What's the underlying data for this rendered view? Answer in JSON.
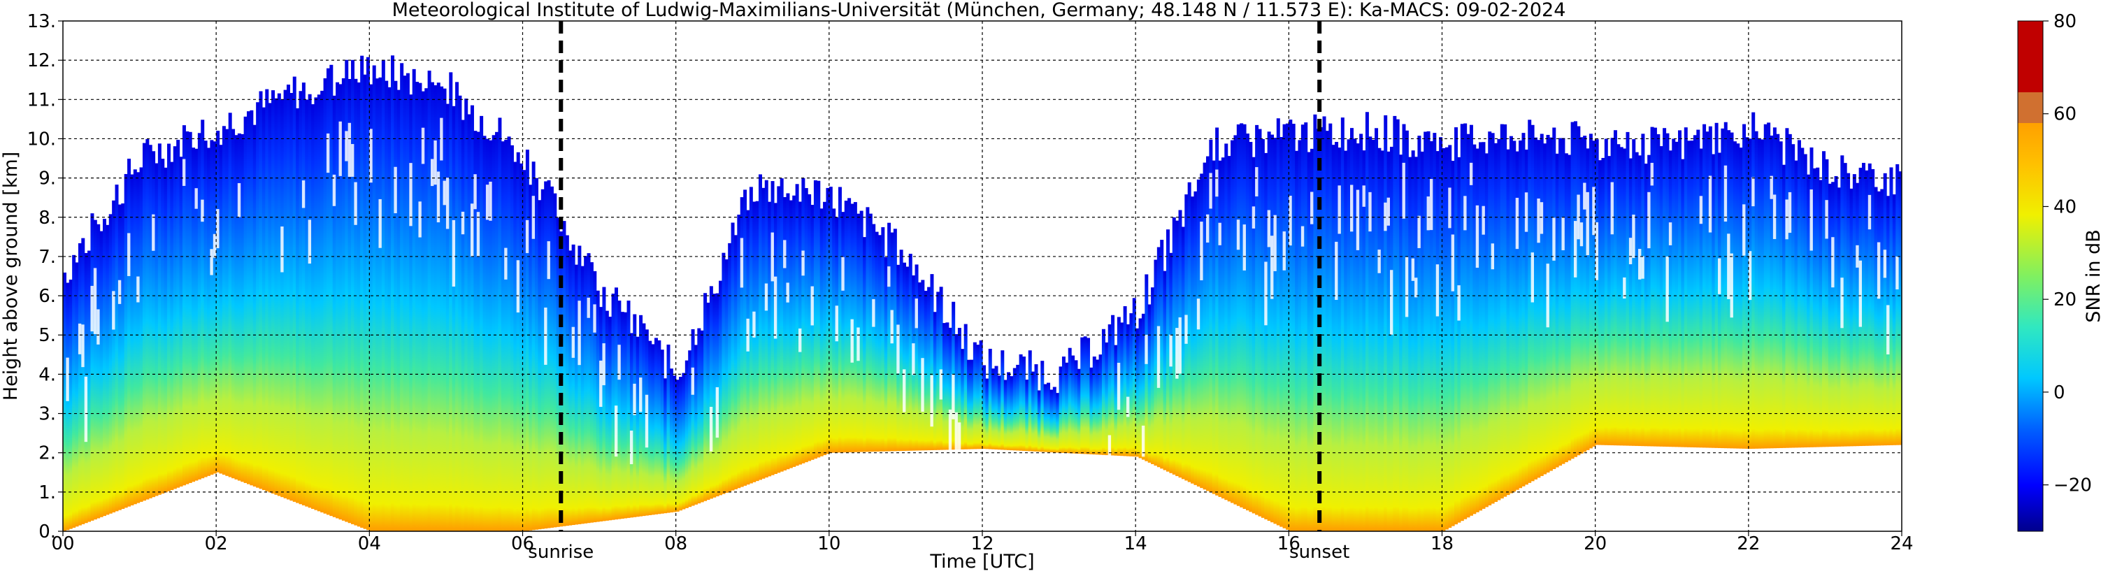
{
  "chart_data": {
    "type": "heatmap",
    "title": "Meteorological Institute of Ludwig-Maximilians-Universität (München, Germany; 48.148 N / 11.573 E):    Ka-MACS: 09-02-2024",
    "xlabel": "Time [UTC]",
    "ylabel": "Height above ground [km]",
    "xlim": [
      0,
      24
    ],
    "ylim": [
      0,
      13
    ],
    "x_ticks": [
      "00",
      "02",
      "04",
      "06",
      "08",
      "10",
      "12",
      "14",
      "16",
      "18",
      "20",
      "22",
      "24"
    ],
    "y_ticks": [
      "0.",
      "1.",
      "2.",
      "3.",
      "4.",
      "5.",
      "6.",
      "7.",
      "8.",
      "9.",
      "10.",
      "11.",
      "12.",
      "13."
    ],
    "grid": true,
    "colorbar": {
      "label": "SNR in dB",
      "range": [
        -30,
        80
      ],
      "ticks": [
        "−20",
        "0",
        "20",
        "40",
        "60",
        "80"
      ],
      "colors": [
        "#00008c",
        "#0000ff",
        "#0060ff",
        "#00c8ff",
        "#30e8c0",
        "#60f080",
        "#b0f040",
        "#f0f000",
        "#ffc000",
        "#ff8000",
        "#ff3000",
        "#c00000"
      ]
    },
    "markers": [
      {
        "label": "sunrise",
        "time": 6.5
      },
      {
        "label": "sunset",
        "time": 16.4
      }
    ],
    "echo_field": {
      "description_free": true,
      "cloud_top_km": [
        {
          "t": 0.0,
          "top": 6.6
        },
        {
          "t": 1.0,
          "top": 9.5
        },
        {
          "t": 2.0,
          "top": 10.3
        },
        {
          "t": 3.0,
          "top": 11.2
        },
        {
          "t": 4.0,
          "top": 11.8
        },
        {
          "t": 5.0,
          "top": 11.3
        },
        {
          "t": 6.0,
          "top": 9.6
        },
        {
          "t": 7.0,
          "top": 6.2
        },
        {
          "t": 8.0,
          "top": 4.0
        },
        {
          "t": 9.0,
          "top": 8.8
        },
        {
          "t": 10.0,
          "top": 8.6
        },
        {
          "t": 11.0,
          "top": 7.0
        },
        {
          "t": 12.0,
          "top": 4.3
        },
        {
          "t": 13.0,
          "top": 4.0
        },
        {
          "t": 14.0,
          "top": 5.6
        },
        {
          "t": 15.0,
          "top": 9.8
        },
        {
          "t": 16.0,
          "top": 10.1
        },
        {
          "t": 17.0,
          "top": 10.2
        },
        {
          "t": 18.0,
          "top": 9.9
        },
        {
          "t": 19.0,
          "top": 10.1
        },
        {
          "t": 20.0,
          "top": 9.9
        },
        {
          "t": 21.0,
          "top": 9.8
        },
        {
          "t": 22.0,
          "top": 10.3
        },
        {
          "t": 23.0,
          "top": 9.2
        },
        {
          "t": 24.0,
          "top": 8.9
        }
      ],
      "cloud_base_km": [
        {
          "t": 0.0,
          "base": 0.0
        },
        {
          "t": 2.0,
          "base": 1.5
        },
        {
          "t": 4.0,
          "base": 0.0
        },
        {
          "t": 6.0,
          "base": 0.0
        },
        {
          "t": 8.0,
          "base": 0.5
        },
        {
          "t": 10.0,
          "base": 2.0
        },
        {
          "t": 12.0,
          "base": 2.1
        },
        {
          "t": 14.0,
          "base": 1.9
        },
        {
          "t": 16.0,
          "base": 0.0
        },
        {
          "t": 18.0,
          "base": 0.0
        },
        {
          "t": 20.0,
          "base": 2.2
        },
        {
          "t": 22.0,
          "base": 2.1
        },
        {
          "t": 24.0,
          "base": 2.2
        }
      ]
    }
  }
}
